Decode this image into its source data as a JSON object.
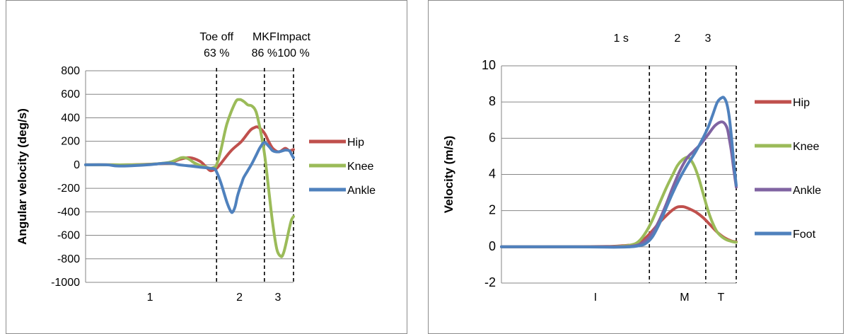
{
  "chart_data": [
    {
      "type": "line",
      "ylabel": "Angular velocity (deg/s)",
      "xlabel": "",
      "ylim": [
        -1000,
        800
      ],
      "xlim": [
        0,
        100
      ],
      "yticks": [
        -1000,
        -800,
        -600,
        -400,
        -200,
        0,
        200,
        400,
        600,
        800
      ],
      "grid": true,
      "legend_position": "right",
      "vlines": [
        {
          "x": 63,
          "label_top": "Toe off",
          "label_bottom": "63 %"
        },
        {
          "x": 86,
          "label_top": "MKF",
          "label_bottom": "86 %"
        },
        {
          "x": 100,
          "label_top": "Impact",
          "label_bottom": "100 %"
        }
      ],
      "phase_labels": [
        {
          "x": 31,
          "text": "1"
        },
        {
          "x": 74,
          "text": "2"
        },
        {
          "x": 92.5,
          "text": "3"
        }
      ],
      "series": [
        {
          "name": "Hip",
          "color": "#c0504d",
          "x": [
            0,
            10,
            20,
            30,
            40,
            45,
            50,
            55,
            58,
            60,
            62,
            63,
            65,
            70,
            75,
            79,
            81,
            83,
            86,
            88,
            90,
            93,
            96,
            98,
            100
          ],
          "y": [
            0,
            0,
            0,
            5,
            15,
            45,
            60,
            30,
            -20,
            -50,
            -40,
            -30,
            10,
            120,
            200,
            290,
            315,
            320,
            270,
            200,
            140,
            110,
            140,
            120,
            130
          ]
        },
        {
          "name": "Knee",
          "color": "#9bbb59",
          "x": [
            0,
            10,
            20,
            30,
            40,
            44,
            46,
            48,
            50,
            52,
            55,
            58,
            60,
            62,
            63,
            65,
            68,
            72,
            74,
            76,
            78,
            80,
            82,
            84,
            86,
            88,
            90,
            92,
            94,
            95,
            96,
            97,
            98,
            99,
            100
          ],
          "y": [
            0,
            0,
            0,
            3,
            20,
            45,
            60,
            60,
            45,
            20,
            -5,
            -20,
            -30,
            -20,
            0,
            120,
            350,
            530,
            555,
            540,
            510,
            500,
            450,
            300,
            100,
            -200,
            -500,
            -720,
            -780,
            -760,
            -700,
            -620,
            -540,
            -470,
            -440
          ]
        },
        {
          "name": "Ankle",
          "color": "#4f81bd",
          "x": [
            0,
            10,
            15,
            20,
            30,
            40,
            45,
            50,
            55,
            58,
            60,
            62,
            63,
            65,
            68,
            70,
            71,
            72,
            73,
            74,
            75,
            76,
            78,
            80,
            82,
            84,
            86,
            88,
            90,
            92,
            94,
            96,
            98,
            99,
            100
          ],
          "y": [
            0,
            0,
            -10,
            -10,
            0,
            15,
            0,
            -10,
            -20,
            -25,
            -30,
            -35,
            -60,
            -150,
            -320,
            -400,
            -395,
            -350,
            -270,
            -210,
            -160,
            -110,
            -50,
            10,
            80,
            150,
            190,
            160,
            120,
            110,
            115,
            125,
            120,
            90,
            60
          ]
        }
      ]
    },
    {
      "type": "line",
      "ylabel": "Velocity (m/s)",
      "xlabel": "",
      "ylim": [
        -2,
        10
      ],
      "xlim": [
        0,
        100
      ],
      "yticks": [
        -2,
        0,
        2,
        4,
        6,
        8,
        10
      ],
      "grid": true,
      "legend_position": "right",
      "vlines": [
        {
          "x": 63,
          "label_top": "1 s"
        },
        {
          "x": 87,
          "label_top": "2"
        },
        {
          "x": 100,
          "label_top": "3"
        }
      ],
      "phase_labels": [
        {
          "x": 40,
          "text": "I"
        },
        {
          "x": 78,
          "text": "M"
        },
        {
          "x": 93.5,
          "text": "T"
        }
      ],
      "series": [
        {
          "name": "Hip",
          "color": "#c0504d",
          "x": [
            0,
            30,
            45,
            50,
            55,
            58,
            61,
            64,
            67,
            70,
            73,
            75,
            77,
            78,
            80,
            83,
            86,
            89,
            92,
            95,
            98,
            100
          ],
          "y": [
            0,
            0,
            0.02,
            0.05,
            0.1,
            0.2,
            0.45,
            0.85,
            1.3,
            1.7,
            2.05,
            2.2,
            2.22,
            2.2,
            2.1,
            1.9,
            1.6,
            1.2,
            0.8,
            0.5,
            0.32,
            0.28
          ]
        },
        {
          "name": "Knee",
          "color": "#9bbb59",
          "x": [
            0,
            30,
            45,
            50,
            55,
            58,
            61,
            64,
            67,
            70,
            73,
            75,
            77,
            79,
            80,
            82,
            84,
            86,
            88,
            90,
            92,
            95,
            98,
            100
          ],
          "y": [
            0,
            0,
            0,
            0.02,
            0.1,
            0.25,
            0.7,
            1.4,
            2.3,
            3.2,
            4.0,
            4.5,
            4.8,
            4.95,
            4.9,
            4.5,
            3.8,
            2.9,
            2.0,
            1.3,
            0.8,
            0.45,
            0.3,
            0.25
          ]
        },
        {
          "name": "Ankle",
          "color": "#8064a2",
          "x": [
            0,
            30,
            45,
            50,
            55,
            58,
            61,
            64,
            67,
            70,
            73,
            76,
            79,
            82,
            85,
            88,
            91,
            94,
            96,
            97,
            98,
            99,
            100
          ],
          "y": [
            0,
            0,
            0,
            0,
            0.03,
            0.1,
            0.3,
            0.7,
            1.4,
            2.3,
            3.3,
            4.2,
            4.9,
            5.3,
            5.7,
            6.2,
            6.7,
            6.9,
            6.6,
            6.0,
            5.2,
            4.2,
            3.3
          ]
        },
        {
          "name": "Foot",
          "color": "#4f81bd",
          "x": [
            0,
            30,
            45,
            50,
            55,
            58,
            61,
            64,
            67,
            70,
            73,
            76,
            79,
            82,
            85,
            88,
            90,
            92,
            94,
            95,
            96,
            97,
            98,
            99,
            100
          ],
          "y": [
            0,
            0,
            -0.02,
            -0.02,
            0,
            0.05,
            0.15,
            0.5,
            1.2,
            2.1,
            3.0,
            3.8,
            4.5,
            5.1,
            5.8,
            6.6,
            7.3,
            8.0,
            8.25,
            8.2,
            7.9,
            7.2,
            6.0,
            4.6,
            3.4
          ]
        }
      ]
    }
  ]
}
